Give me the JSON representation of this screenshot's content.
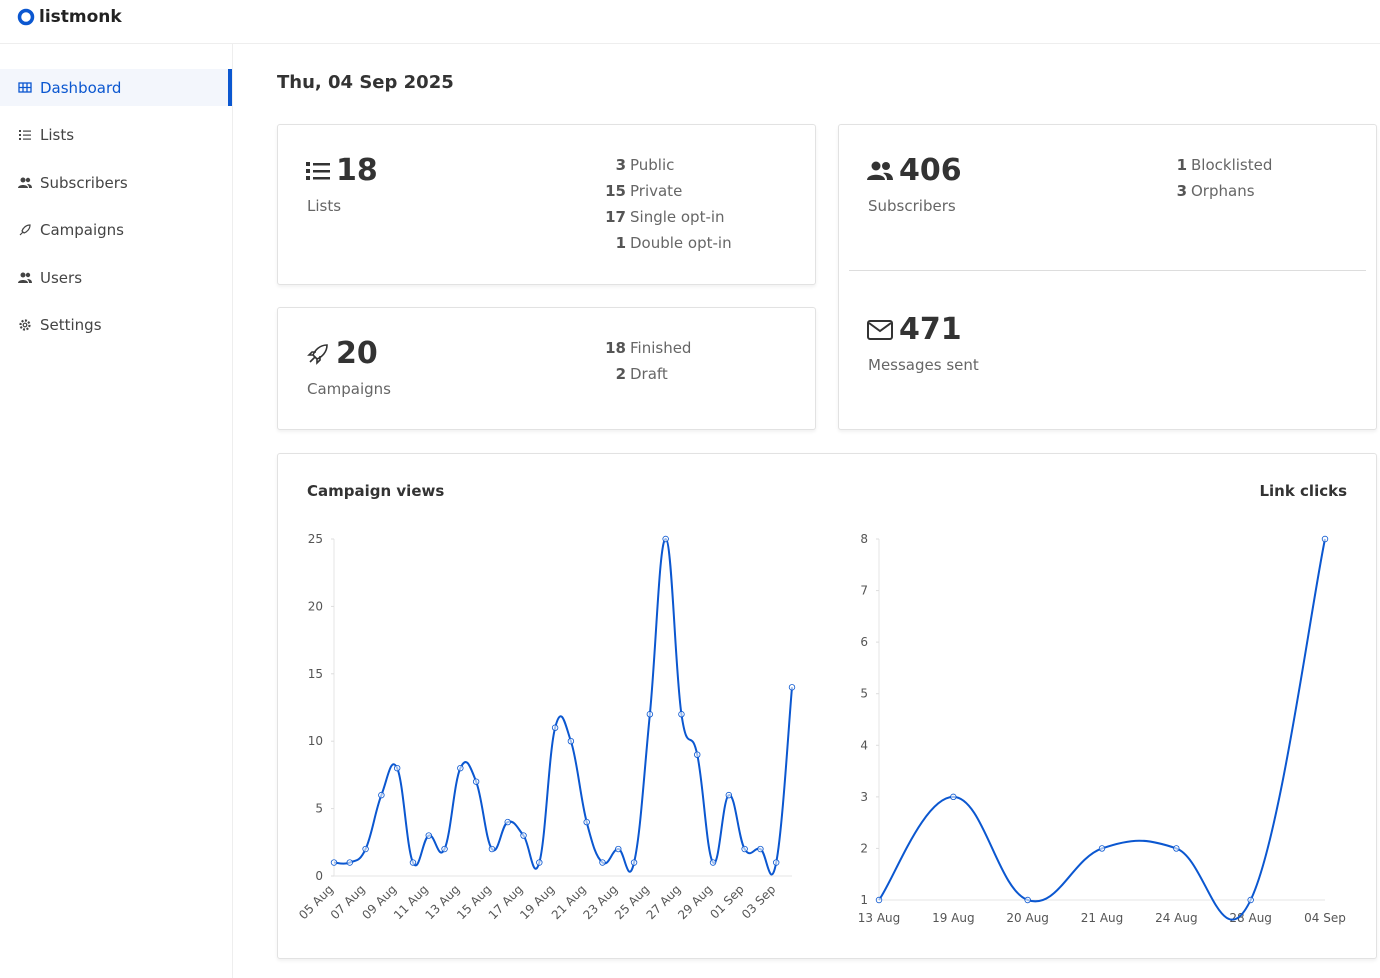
{
  "brand": "listmonk",
  "nav": [
    "Dashboard",
    "Lists",
    "Subscribers",
    "Campaigns",
    "Users",
    "Settings"
  ],
  "date": "Thu, 04 Sep 2025",
  "lists": {
    "count": 18,
    "label": "Lists",
    "breakdown": [
      {
        "value": 3,
        "label": "Public"
      },
      {
        "value": 15,
        "label": "Private"
      },
      {
        "value": 17,
        "label": "Single opt-in"
      },
      {
        "value": 1,
        "label": "Double opt-in"
      }
    ]
  },
  "campaigns": {
    "count": 20,
    "label": "Campaigns",
    "breakdown": [
      {
        "value": 18,
        "label": "Finished"
      },
      {
        "value": 2,
        "label": "Draft"
      }
    ]
  },
  "subscribers": {
    "count": 406,
    "label": "Subscribers",
    "breakdown": [
      {
        "value": 1,
        "label": "Blocklisted"
      },
      {
        "value": 3,
        "label": "Orphans"
      }
    ]
  },
  "messages": {
    "count": 471,
    "label": "Messages sent"
  },
  "chart_data": [
    {
      "type": "line",
      "title": "Campaign views",
      "color": "#0b57d0",
      "categories": [
        "05 Aug",
        null,
        "07 Aug",
        null,
        "09 Aug",
        null,
        "11 Aug",
        null,
        "13 Aug",
        null,
        "15 Aug",
        null,
        "17 Aug",
        null,
        "19 Aug",
        null,
        "21 Aug",
        null,
        "23 Aug",
        null,
        "25 Aug",
        null,
        "27 Aug",
        null,
        "29 Aug",
        null,
        "01 Sep",
        null,
        "03 Sep",
        null
      ],
      "values": [
        1,
        1,
        2,
        6,
        8,
        1,
        3,
        2,
        8,
        7,
        2,
        4,
        3,
        1,
        11,
        10,
        4,
        1,
        2,
        1,
        12,
        25,
        12,
        9,
        1,
        6,
        2,
        2,
        1,
        14
      ],
      "ylim": [
        0,
        25
      ],
      "yticks": [
        0,
        5,
        10,
        15,
        20,
        25
      ]
    },
    {
      "type": "line",
      "title": "Link clicks",
      "color": "#0b57d0",
      "categories": [
        "13 Aug",
        "19 Aug",
        "20 Aug",
        "21 Aug",
        "24 Aug",
        "28 Aug",
        "04 Sep"
      ],
      "values": [
        1,
        3,
        1,
        2,
        2,
        1,
        8
      ],
      "ylim": [
        1,
        8
      ],
      "yticks": [
        1,
        2,
        3,
        4,
        5,
        6,
        7,
        8
      ]
    }
  ]
}
